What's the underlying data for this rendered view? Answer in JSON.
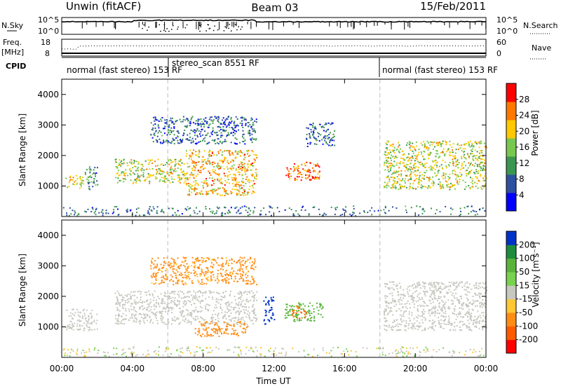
{
  "header": {
    "station": "Unwin (fitACF)",
    "beam": "Beam 03",
    "date": "15/Feb/2011"
  },
  "noise_panel": {
    "left_label": "N.Sky",
    "left_ticks": [
      "10^5",
      "10^0"
    ],
    "right_label": "N.Search",
    "right_ticks": [
      "10^5",
      "10^0"
    ]
  },
  "freq_panel": {
    "left_label_1": "Freq.",
    "left_label_2": "[MHz]",
    "left_ticks": [
      "18",
      "8"
    ],
    "right_label": "Nave",
    "right_ticks": [
      "60",
      "0"
    ]
  },
  "cpid": {
    "label": "CPID",
    "segments": [
      {
        "text": "normal (fast stereo) 153 RF"
      },
      {
        "text": "stereo_scan 8551 RF"
      },
      {
        "text": "normal (fast stereo) 153 RF"
      }
    ]
  },
  "power_panel": {
    "ylabel": "Slant Range [km]",
    "yticks": [
      "1000",
      "2000",
      "3000",
      "4000"
    ],
    "colorbar_label": "Power [dB]",
    "colorbar_ticks": [
      "4",
      "8",
      "12",
      "16",
      "20",
      "24",
      "28"
    ],
    "colors": [
      "#0000ff",
      "#2d50a0",
      "#3c9650",
      "#78c850",
      "#ffc800",
      "#ff7800",
      "#ff0000"
    ]
  },
  "velocity_panel": {
    "ylabel": "Slant Range [km]",
    "yticks": [
      "1000",
      "2000",
      "3000",
      "4000"
    ],
    "colorbar_label": "Velocity [m s⁻¹]",
    "colorbar_ticks": [
      "200",
      "100",
      "50",
      "15",
      "-15",
      "-50",
      "-100",
      "-200"
    ],
    "colors": [
      "#0032c8",
      "#1e8c3c",
      "#5ab43c",
      "#78d250",
      "#c8c8c0",
      "#ffc832",
      "#ff8c14",
      "#ff5a00",
      "#ff0000"
    ]
  },
  "xaxis": {
    "label": "Time UT",
    "ticks": [
      "00:00",
      "04:00",
      "08:00",
      "12:00",
      "16:00",
      "20:00",
      "00:00"
    ]
  },
  "chart_data": [
    {
      "type": "heatmap",
      "title": "Power",
      "xlabel": "Time UT",
      "ylabel": "Slant Range [km]",
      "xlim": [
        0,
        24
      ],
      "ylim": [
        0,
        4500
      ],
      "colorbar": {
        "label": "Power [dB]",
        "range": [
          0,
          32
        ],
        "ticks": [
          4,
          8,
          12,
          16,
          20,
          24,
          28
        ]
      },
      "echo_regions": [
        {
          "t_start": 0.2,
          "t_end": 1.2,
          "range_km": [
            950,
            1400
          ],
          "power_db": 20
        },
        {
          "t_start": 1.3,
          "t_end": 2.0,
          "range_km": [
            900,
            1650
          ],
          "power_db": 10
        },
        {
          "t_start": 3.0,
          "t_end": 7.0,
          "range_km": [
            1100,
            1900
          ],
          "power_db": 18
        },
        {
          "t_start": 7.0,
          "t_end": 11.0,
          "range_km": [
            700,
            2200
          ],
          "power_db": 22
        },
        {
          "t_start": 12.6,
          "t_end": 14.6,
          "range_km": [
            1200,
            1800
          ],
          "power_db": 26
        },
        {
          "t_start": 5.0,
          "t_end": 11.0,
          "range_km": [
            2400,
            3300
          ],
          "power_db": 8
        },
        {
          "t_start": 13.8,
          "t_end": 15.4,
          "range_km": [
            2300,
            3100
          ],
          "power_db": 8
        },
        {
          "t_start": 18.2,
          "t_end": 24.0,
          "range_km": [
            900,
            2500
          ],
          "power_db": 18
        }
      ]
    },
    {
      "type": "heatmap",
      "title": "Velocity",
      "xlabel": "Time UT",
      "ylabel": "Slant Range [km]",
      "xlim": [
        0,
        24
      ],
      "ylim": [
        0,
        4500
      ],
      "colorbar": {
        "label": "Velocity [m s⁻¹]",
        "range": [
          -250,
          250
        ],
        "ticks": [
          -200,
          -100,
          -50,
          -15,
          15,
          50,
          100,
          200
        ]
      },
      "echo_regions": [
        {
          "t_start": 0.2,
          "t_end": 2.0,
          "range_km": [
            900,
            1600
          ],
          "velocity": 0
        },
        {
          "t_start": 3.0,
          "t_end": 11.0,
          "range_km": [
            1100,
            2200
          ],
          "velocity": 0
        },
        {
          "t_start": 7.5,
          "t_end": 10.5,
          "range_km": [
            700,
            1200
          ],
          "velocity": -60
        },
        {
          "t_start": 11.4,
          "t_end": 12.0,
          "range_km": [
            1100,
            2000
          ],
          "velocity": 200
        },
        {
          "t_start": 12.6,
          "t_end": 14.8,
          "range_km": [
            1200,
            1800
          ],
          "velocity": 60
        },
        {
          "t_start": 13.0,
          "t_end": 13.8,
          "range_km": [
            1300,
            1700
          ],
          "velocity": -80
        },
        {
          "t_start": 5.0,
          "t_end": 11.0,
          "range_km": [
            2400,
            3300
          ],
          "velocity": -40
        },
        {
          "t_start": 18.2,
          "t_end": 24.0,
          "range_km": [
            900,
            2500
          ],
          "velocity": 0
        }
      ]
    }
  ]
}
